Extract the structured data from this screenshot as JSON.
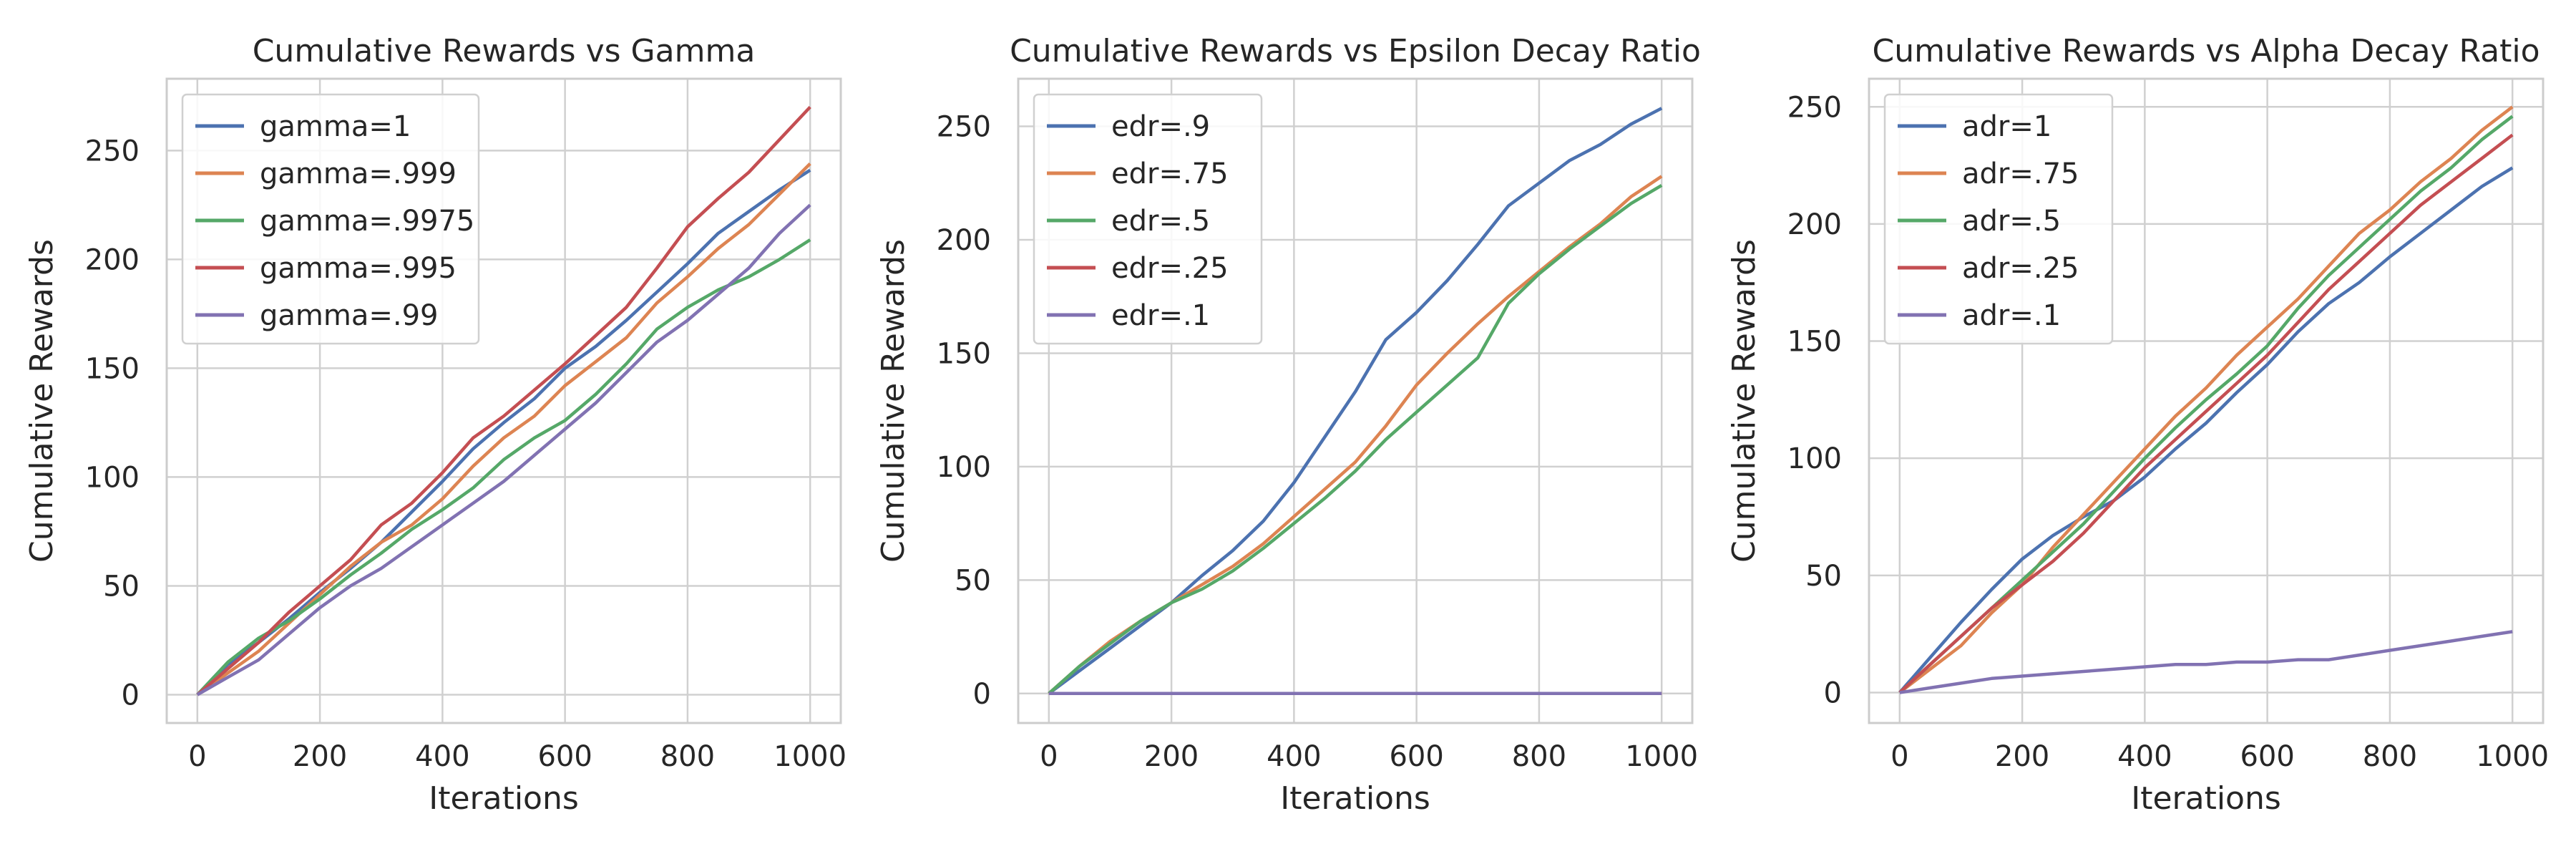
{
  "chart_data": [
    {
      "type": "line",
      "title": "Cumulative Rewards vs Gamma",
      "xlabel": "Iterations",
      "ylabel": "Cumulative Rewards",
      "xlim": [
        -50,
        1050
      ],
      "ylim": [
        -13,
        283
      ],
      "xticks": [
        0,
        200,
        400,
        600,
        800,
        1000
      ],
      "yticks": [
        0,
        50,
        100,
        150,
        200,
        250
      ],
      "grid": true,
      "legend_position": "top-left",
      "series": [
        {
          "name": "gamma=1",
          "color": "#4c72b0",
          "x": [
            0,
            50,
            100,
            150,
            200,
            250,
            300,
            350,
            400,
            450,
            500,
            550,
            600,
            650,
            700,
            750,
            800,
            850,
            900,
            950,
            1000
          ],
          "y": [
            0,
            14,
            24,
            35,
            47,
            58,
            70,
            84,
            98,
            113,
            125,
            136,
            150,
            160,
            172,
            185,
            198,
            212,
            222,
            232,
            241
          ]
        },
        {
          "name": "gamma=.999",
          "color": "#dd8452",
          "x": [
            0,
            50,
            100,
            150,
            200,
            250,
            300,
            350,
            400,
            450,
            500,
            550,
            600,
            650,
            700,
            750,
            800,
            850,
            900,
            950,
            1000
          ],
          "y": [
            0,
            10,
            20,
            33,
            46,
            59,
            70,
            78,
            90,
            105,
            118,
            128,
            142,
            153,
            164,
            180,
            192,
            205,
            216,
            230,
            244
          ]
        },
        {
          "name": "gamma=.9975",
          "color": "#55a868",
          "x": [
            0,
            50,
            100,
            150,
            200,
            250,
            300,
            350,
            400,
            450,
            500,
            550,
            600,
            650,
            700,
            750,
            800,
            850,
            900,
            950,
            1000
          ],
          "y": [
            0,
            15,
            26,
            34,
            44,
            55,
            65,
            76,
            85,
            95,
            108,
            118,
            126,
            138,
            152,
            168,
            178,
            186,
            192,
            200,
            209
          ]
        },
        {
          "name": "gamma=.995",
          "color": "#c44e52",
          "x": [
            0,
            50,
            100,
            150,
            200,
            250,
            300,
            350,
            400,
            450,
            500,
            550,
            600,
            650,
            700,
            750,
            800,
            850,
            900,
            950,
            1000
          ],
          "y": [
            0,
            12,
            24,
            38,
            50,
            62,
            78,
            88,
            102,
            118,
            128,
            140,
            152,
            165,
            178,
            196,
            215,
            228,
            240,
            255,
            270
          ]
        },
        {
          "name": "gamma=.99",
          "color": "#8172b2",
          "x": [
            0,
            50,
            100,
            150,
            200,
            250,
            300,
            350,
            400,
            450,
            500,
            550,
            600,
            650,
            700,
            750,
            800,
            850,
            900,
            950,
            1000
          ],
          "y": [
            0,
            8,
            16,
            28,
            40,
            50,
            58,
            68,
            78,
            88,
            98,
            110,
            122,
            134,
            148,
            162,
            172,
            184,
            196,
            212,
            225
          ]
        }
      ]
    },
    {
      "type": "line",
      "title": "Cumulative Rewards vs Epsilon Decay Ratio",
      "xlabel": "Iterations",
      "ylabel": "Cumulative Rewards",
      "xlim": [
        -50,
        1050
      ],
      "ylim": [
        -13,
        271
      ],
      "xticks": [
        0,
        200,
        400,
        600,
        800,
        1000
      ],
      "yticks": [
        0,
        50,
        100,
        150,
        200,
        250
      ],
      "grid": true,
      "legend_position": "top-left",
      "series": [
        {
          "name": "edr=.9",
          "color": "#4c72b0",
          "x": [
            0,
            50,
            100,
            150,
            200,
            250,
            300,
            350,
            400,
            450,
            500,
            550,
            600,
            650,
            700,
            750,
            800,
            850,
            900,
            950,
            1000
          ],
          "y": [
            0,
            10,
            20,
            30,
            40,
            52,
            63,
            76,
            93,
            113,
            133,
            156,
            168,
            182,
            198,
            215,
            225,
            235,
            242,
            251,
            258
          ]
        },
        {
          "name": "edr=.75",
          "color": "#dd8452",
          "x": [
            0,
            50,
            100,
            150,
            200,
            250,
            300,
            350,
            400,
            450,
            500,
            550,
            600,
            650,
            700,
            750,
            800,
            850,
            900,
            950,
            1000
          ],
          "y": [
            0,
            12,
            23,
            32,
            40,
            48,
            56,
            66,
            78,
            90,
            102,
            118,
            136,
            150,
            163,
            175,
            186,
            197,
            207,
            219,
            228
          ]
        },
        {
          "name": "edr=.5",
          "color": "#55a868",
          "x": [
            0,
            50,
            100,
            150,
            200,
            250,
            300,
            350,
            400,
            450,
            500,
            550,
            600,
            650,
            700,
            750,
            800,
            850,
            900,
            950,
            1000
          ],
          "y": [
            0,
            12,
            22,
            32,
            40,
            46,
            54,
            64,
            75,
            86,
            98,
            112,
            124,
            136,
            148,
            172,
            185,
            196,
            206,
            216,
            224
          ]
        },
        {
          "name": "edr=.25",
          "color": "#c44e52",
          "x": [
            0,
            1000
          ],
          "y": [
            0,
            0
          ]
        },
        {
          "name": "edr=.1",
          "color": "#8172b2",
          "x": [
            0,
            1000
          ],
          "y": [
            0,
            0
          ]
        }
      ]
    },
    {
      "type": "line",
      "title": "Cumulative Rewards vs Alpha Decay Ratio",
      "xlabel": "Iterations",
      "ylabel": "Cumulative Rewards",
      "xlim": [
        -50,
        1050
      ],
      "ylim": [
        -13,
        262
      ],
      "xticks": [
        0,
        200,
        400,
        600,
        800,
        1000
      ],
      "yticks": [
        0,
        50,
        100,
        150,
        200,
        250
      ],
      "grid": true,
      "legend_position": "top-left",
      "series": [
        {
          "name": "adr=1",
          "color": "#4c72b0",
          "x": [
            0,
            50,
            100,
            150,
            200,
            250,
            300,
            350,
            400,
            450,
            500,
            550,
            600,
            650,
            700,
            750,
            800,
            850,
            900,
            950,
            1000
          ],
          "y": [
            0,
            15,
            30,
            44,
            57,
            67,
            75,
            82,
            92,
            104,
            115,
            128,
            140,
            154,
            166,
            175,
            186,
            196,
            206,
            216,
            224
          ]
        },
        {
          "name": "adr=.75",
          "color": "#dd8452",
          "x": [
            0,
            50,
            100,
            150,
            200,
            250,
            300,
            350,
            400,
            450,
            500,
            550,
            600,
            650,
            700,
            750,
            800,
            850,
            900,
            950,
            1000
          ],
          "y": [
            0,
            10,
            20,
            34,
            46,
            62,
            76,
            90,
            104,
            118,
            130,
            144,
            156,
            168,
            182,
            196,
            206,
            218,
            228,
            240,
            250
          ]
        },
        {
          "name": "adr=.5",
          "color": "#55a868",
          "x": [
            0,
            50,
            100,
            150,
            200,
            250,
            300,
            350,
            400,
            450,
            500,
            550,
            600,
            650,
            700,
            750,
            800,
            850,
            900,
            950,
            1000
          ],
          "y": [
            0,
            12,
            24,
            36,
            48,
            60,
            72,
            86,
            100,
            113,
            125,
            136,
            148,
            164,
            178,
            190,
            202,
            214,
            224,
            236,
            246
          ]
        },
        {
          "name": "adr=.25",
          "color": "#c44e52",
          "x": [
            0,
            50,
            100,
            150,
            200,
            250,
            300,
            350,
            400,
            450,
            500,
            550,
            600,
            650,
            700,
            750,
            800,
            850,
            900,
            950,
            1000
          ],
          "y": [
            0,
            12,
            24,
            36,
            46,
            56,
            68,
            82,
            96,
            108,
            120,
            132,
            144,
            158,
            172,
            184,
            196,
            208,
            218,
            228,
            238
          ]
        },
        {
          "name": "adr=.1",
          "color": "#8172b2",
          "x": [
            0,
            50,
            100,
            150,
            200,
            250,
            300,
            350,
            400,
            450,
            500,
            550,
            600,
            650,
            700,
            750,
            800,
            850,
            900,
            950,
            1000
          ],
          "y": [
            0,
            2,
            4,
            6,
            7,
            8,
            9,
            10,
            11,
            12,
            12,
            13,
            13,
            14,
            14,
            16,
            18,
            20,
            22,
            24,
            26
          ]
        }
      ]
    }
  ]
}
